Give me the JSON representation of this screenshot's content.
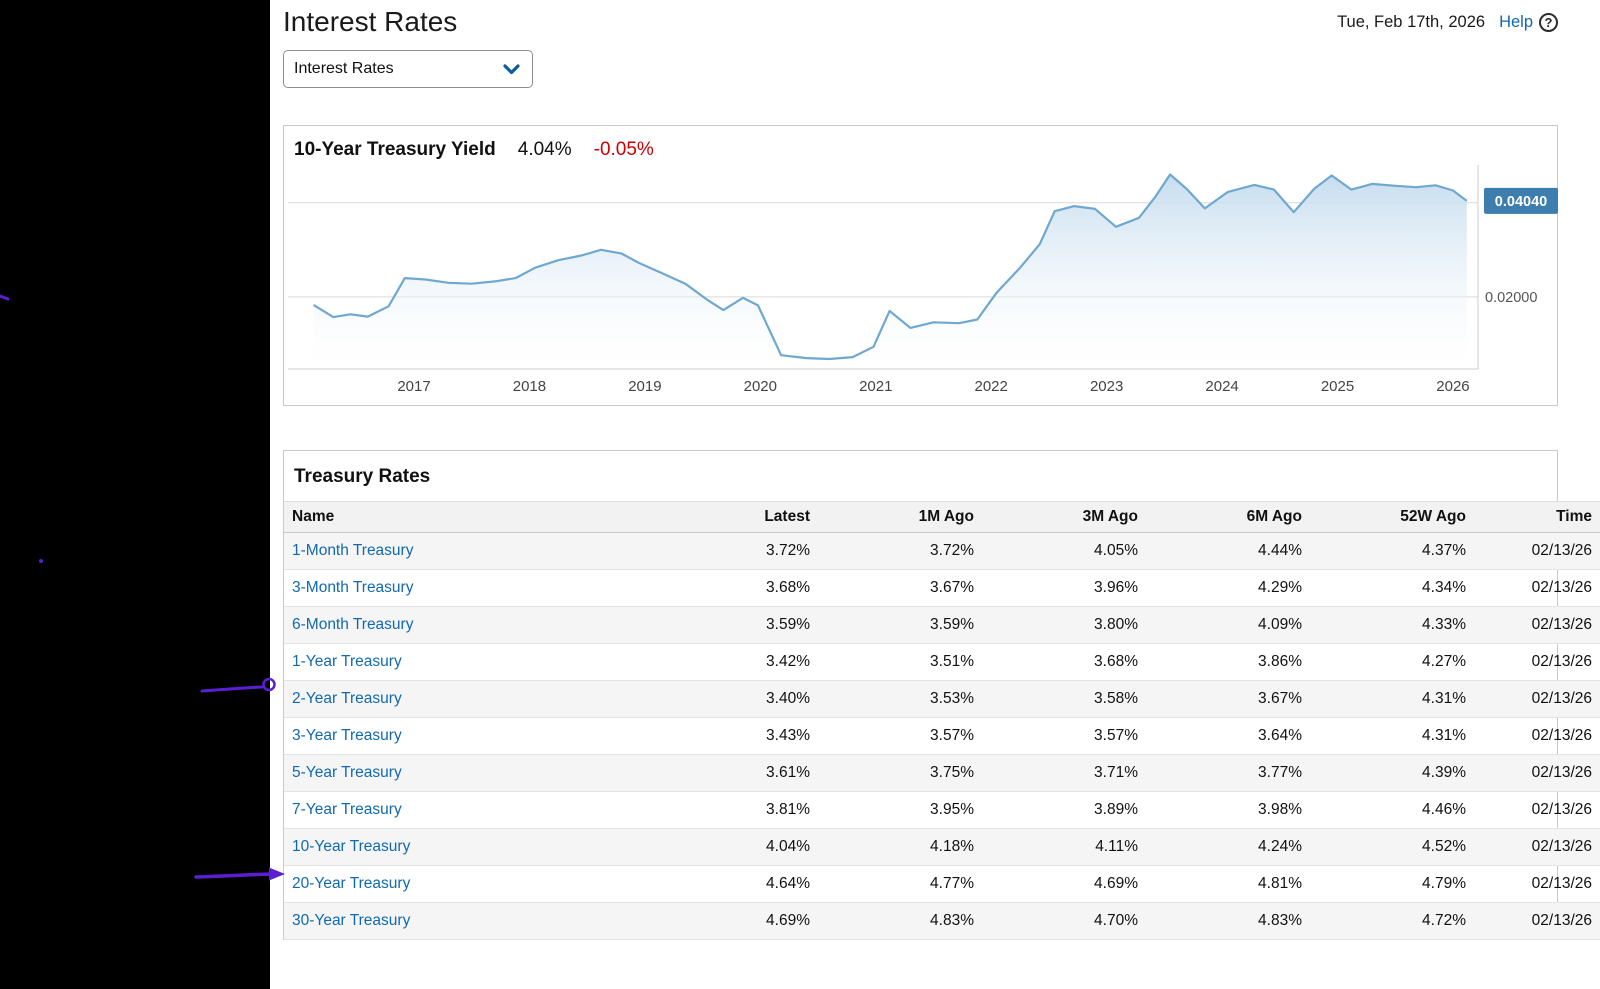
{
  "page": {
    "title": "Interest Rates",
    "date": "Tue, Feb 17th, 2026",
    "help_label": "Help",
    "help_icon_glyph": "?",
    "dropdown_value": "Interest Rates"
  },
  "chart": {
    "title": "10-Year Treasury Yield",
    "value": "4.04%",
    "change": "-0.05%",
    "axis_badge": "0.04040",
    "axis_label": "0.02000"
  },
  "chart_data": {
    "type": "area",
    "title": "10-Year Treasury Yield",
    "legend": "none",
    "grid": "horizontal",
    "x_ticks": [
      2017,
      2018,
      2019,
      2020,
      2021,
      2022,
      2023,
      2024,
      2025,
      2026
    ],
    "gridline_values": [
      0.04,
      0.02
    ],
    "ylim": [
      0.005,
      0.052
    ],
    "last_value": 0.0404,
    "points": [
      [
        2016.13,
        0.0183
      ],
      [
        2016.3,
        0.0157
      ],
      [
        2016.45,
        0.0163
      ],
      [
        2016.6,
        0.0158
      ],
      [
        2016.78,
        0.018
      ],
      [
        2016.92,
        0.024
      ],
      [
        2017.1,
        0.0237
      ],
      [
        2017.3,
        0.023
      ],
      [
        2017.5,
        0.0228
      ],
      [
        2017.7,
        0.0233
      ],
      [
        2017.88,
        0.024
      ],
      [
        2018.05,
        0.0262
      ],
      [
        2018.25,
        0.0278
      ],
      [
        2018.45,
        0.0288
      ],
      [
        2018.62,
        0.03
      ],
      [
        2018.8,
        0.0292
      ],
      [
        2018.95,
        0.0272
      ],
      [
        2019.15,
        0.025
      ],
      [
        2019.35,
        0.0228
      ],
      [
        2019.55,
        0.0192
      ],
      [
        2019.68,
        0.0172
      ],
      [
        2019.85,
        0.0198
      ],
      [
        2019.98,
        0.0182
      ],
      [
        2020.18,
        0.0076
      ],
      [
        2020.4,
        0.007
      ],
      [
        2020.6,
        0.0068
      ],
      [
        2020.8,
        0.0072
      ],
      [
        2020.98,
        0.0094
      ],
      [
        2021.12,
        0.017
      ],
      [
        2021.3,
        0.0134
      ],
      [
        2021.5,
        0.0146
      ],
      [
        2021.72,
        0.0144
      ],
      [
        2021.88,
        0.0152
      ],
      [
        2022.05,
        0.021
      ],
      [
        2022.25,
        0.0262
      ],
      [
        2022.42,
        0.0312
      ],
      [
        2022.55,
        0.0382
      ],
      [
        2022.72,
        0.0393
      ],
      [
        2022.9,
        0.0387
      ],
      [
        2023.08,
        0.0349
      ],
      [
        2023.28,
        0.0368
      ],
      [
        2023.42,
        0.0412
      ],
      [
        2023.55,
        0.046
      ],
      [
        2023.7,
        0.0428
      ],
      [
        2023.85,
        0.0388
      ],
      [
        2024.05,
        0.0423
      ],
      [
        2024.28,
        0.0438
      ],
      [
        2024.45,
        0.0428
      ],
      [
        2024.62,
        0.038
      ],
      [
        2024.8,
        0.043
      ],
      [
        2024.95,
        0.0458
      ],
      [
        2025.12,
        0.0428
      ],
      [
        2025.3,
        0.044
      ],
      [
        2025.5,
        0.0436
      ],
      [
        2025.68,
        0.0433
      ],
      [
        2025.85,
        0.0437
      ],
      [
        2026.0,
        0.0426
      ],
      [
        2026.12,
        0.0404
      ]
    ]
  },
  "treasury": {
    "heading": "Treasury Rates",
    "columns": [
      "Name",
      "Latest",
      "1M Ago",
      "3M Ago",
      "6M Ago",
      "52W Ago",
      "Time"
    ],
    "rows": [
      {
        "name": "1-Month Treasury",
        "latest": "3.72%",
        "m1": "3.72%",
        "m3": "4.05%",
        "m6": "4.44%",
        "w52": "4.37%",
        "time": "02/13/26"
      },
      {
        "name": "3-Month Treasury",
        "latest": "3.68%",
        "m1": "3.67%",
        "m3": "3.96%",
        "m6": "4.29%",
        "w52": "4.34%",
        "time": "02/13/26"
      },
      {
        "name": "6-Month Treasury",
        "latest": "3.59%",
        "m1": "3.59%",
        "m3": "3.80%",
        "m6": "4.09%",
        "w52": "4.33%",
        "time": "02/13/26"
      },
      {
        "name": "1-Year Treasury",
        "latest": "3.42%",
        "m1": "3.51%",
        "m3": "3.68%",
        "m6": "3.86%",
        "w52": "4.27%",
        "time": "02/13/26"
      },
      {
        "name": "2-Year Treasury",
        "latest": "3.40%",
        "m1": "3.53%",
        "m3": "3.58%",
        "m6": "3.67%",
        "w52": "4.31%",
        "time": "02/13/26"
      },
      {
        "name": "3-Year Treasury",
        "latest": "3.43%",
        "m1": "3.57%",
        "m3": "3.57%",
        "m6": "3.64%",
        "w52": "4.31%",
        "time": "02/13/26"
      },
      {
        "name": "5-Year Treasury",
        "latest": "3.61%",
        "m1": "3.75%",
        "m3": "3.71%",
        "m6": "3.77%",
        "w52": "4.39%",
        "time": "02/13/26"
      },
      {
        "name": "7-Year Treasury",
        "latest": "3.81%",
        "m1": "3.95%",
        "m3": "3.89%",
        "m6": "3.98%",
        "w52": "4.46%",
        "time": "02/13/26"
      },
      {
        "name": "10-Year Treasury",
        "latest": "4.04%",
        "m1": "4.18%",
        "m3": "4.11%",
        "m6": "4.24%",
        "w52": "4.52%",
        "time": "02/13/26"
      },
      {
        "name": "20-Year Treasury",
        "latest": "4.64%",
        "m1": "4.77%",
        "m3": "4.69%",
        "m6": "4.81%",
        "w52": "4.79%",
        "time": "02/13/26"
      },
      {
        "name": "30-Year Treasury",
        "latest": "4.69%",
        "m1": "4.83%",
        "m3": "4.70%",
        "m6": "4.83%",
        "w52": "4.72%",
        "time": "02/13/26"
      }
    ]
  },
  "colors": {
    "link_blue": "#1269b0",
    "badge_blue": "#3d7eae",
    "chart_line": "#6fa8cf",
    "negative_red": "#cc0000",
    "annotation_purple": "#5b1fd3",
    "gridline_gray": "#d9d9d9"
  }
}
